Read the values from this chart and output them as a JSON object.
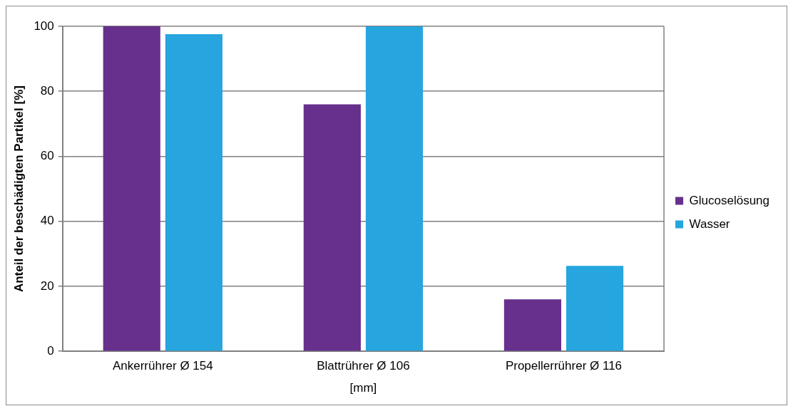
{
  "chart_data": {
    "type": "bar",
    "xlabel": "[mm]",
    "ylabel": "Anteil der beschädigten Partikel [%]",
    "categories": [
      "Ankerrührer Ø 154",
      "Blattrührer Ø 106",
      "Propellerrührer Ø 116"
    ],
    "series": [
      {
        "name": "Glucoselösung",
        "color": "#66308c",
        "values": [
          100,
          76,
          16
        ]
      },
      {
        "name": "Wasser",
        "color": "#26a5df",
        "values": [
          97.6,
          100,
          26.3
        ]
      }
    ],
    "ylim": [
      0,
      100
    ],
    "yticks": [
      0,
      20,
      40,
      60,
      80,
      100
    ],
    "grid": "y",
    "legend": "right"
  }
}
